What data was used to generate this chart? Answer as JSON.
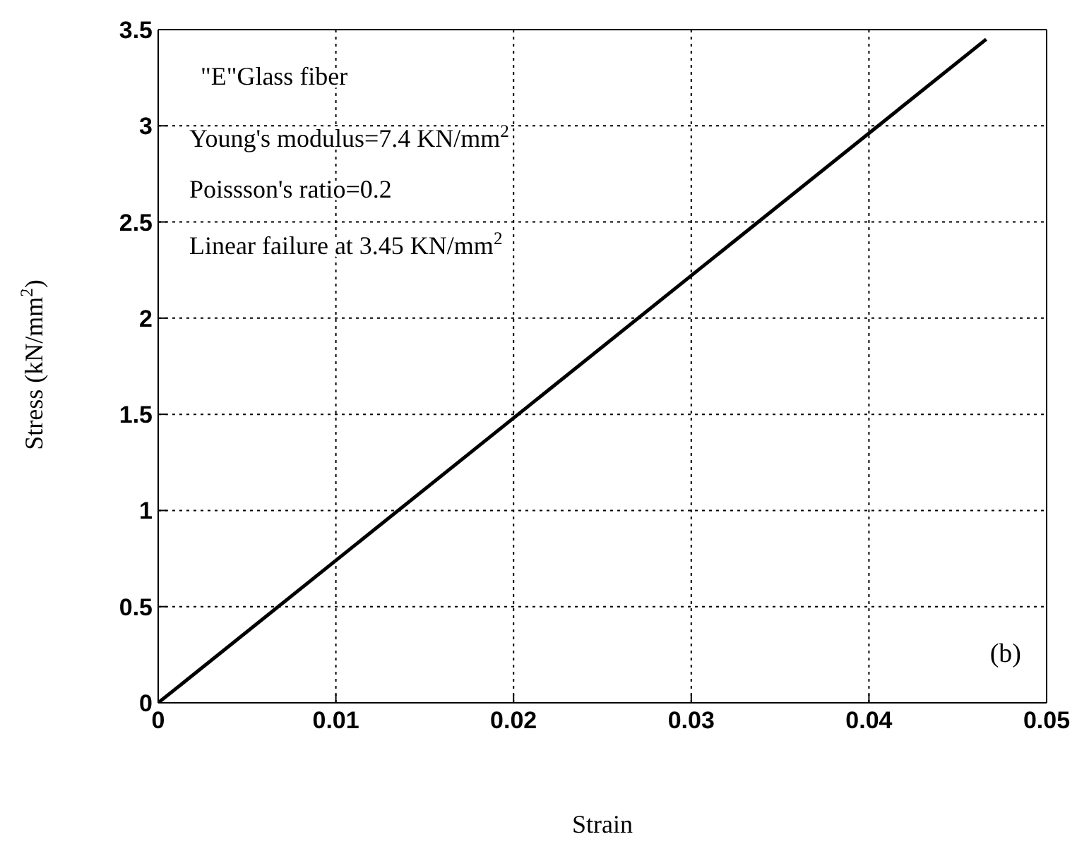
{
  "chart_data": {
    "type": "line",
    "xlabel": "Strain",
    "ylabel": "Stress (kN/mm$^{2}$)",
    "x": [
      0,
      0.0466
    ],
    "series": [
      {
        "color": "#000000",
        "values": [
          0,
          3.45
        ]
      }
    ],
    "xlim": [
      0,
      0.05
    ],
    "xticks": [
      0,
      0.01,
      0.02,
      0.03,
      0.04,
      0.05
    ],
    "ylim": [
      0,
      3.5
    ],
    "yticks": [
      0,
      0.5,
      1,
      1.5,
      2,
      2.5,
      3,
      3.5
    ],
    "grid": true,
    "marker": "none",
    "line_style": "solid",
    "annotations": [
      "\"E\"Glass fiber",
      "Young's modulus=7.4 KN/mm$^{2}$",
      "Poissson's ratio=0.2",
      "Linear failure at 3.45 KN/mm$^{2}$",
      "(b)"
    ]
  }
}
